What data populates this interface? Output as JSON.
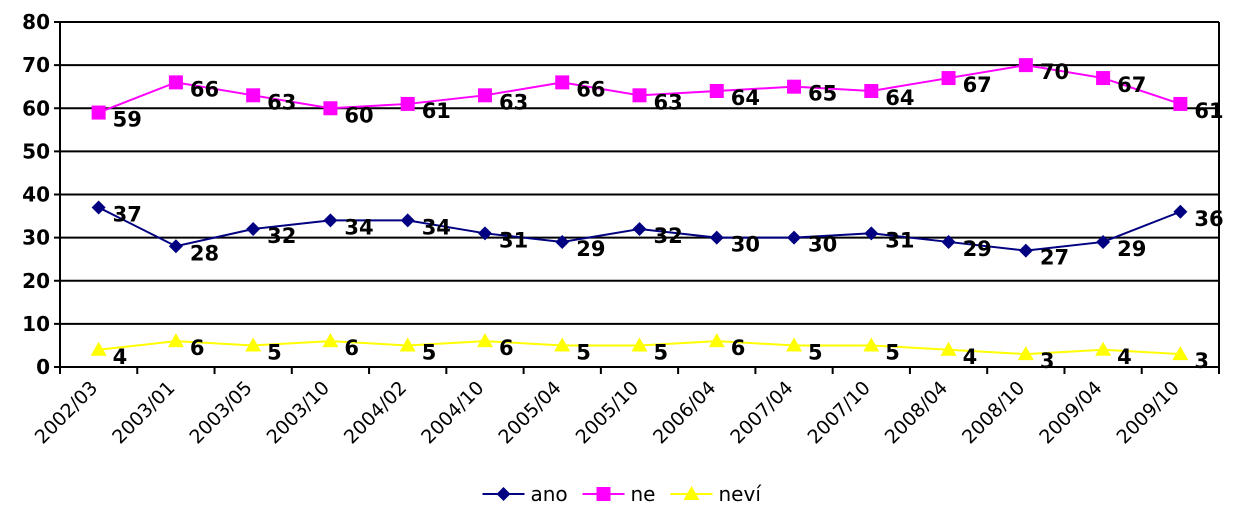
{
  "chart_data": {
    "type": "line",
    "categories": [
      "2002/03",
      "2003/01",
      "2003/05",
      "2003/10",
      "2004/02",
      "2004/10",
      "2005/04",
      "2005/10",
      "2006/04",
      "2007/04",
      "2007/10",
      "2008/04",
      "2008/10",
      "2009/04",
      "2009/10"
    ],
    "series": [
      {
        "name": "ano",
        "color": "#000080",
        "marker": "diamond",
        "values": [
          37,
          28,
          32,
          34,
          34,
          31,
          29,
          32,
          30,
          30,
          31,
          29,
          27,
          29,
          36
        ]
      },
      {
        "name": "ne",
        "color": "#FF00FF",
        "marker": "square",
        "values": [
          59,
          66,
          63,
          60,
          61,
          63,
          66,
          63,
          64,
          65,
          64,
          67,
          70,
          67,
          61
        ]
      },
      {
        "name": "neví",
        "color": "#FFFF00",
        "marker": "triangle",
        "values": [
          4,
          6,
          5,
          6,
          5,
          6,
          5,
          5,
          6,
          5,
          5,
          4,
          3,
          4,
          3
        ]
      }
    ],
    "yticks": [
      0,
      10,
      20,
      30,
      40,
      50,
      60,
      70,
      80
    ],
    "ylim": [
      0,
      80
    ],
    "grid": true,
    "legend": "bottom-center",
    "data_labels": true
  }
}
